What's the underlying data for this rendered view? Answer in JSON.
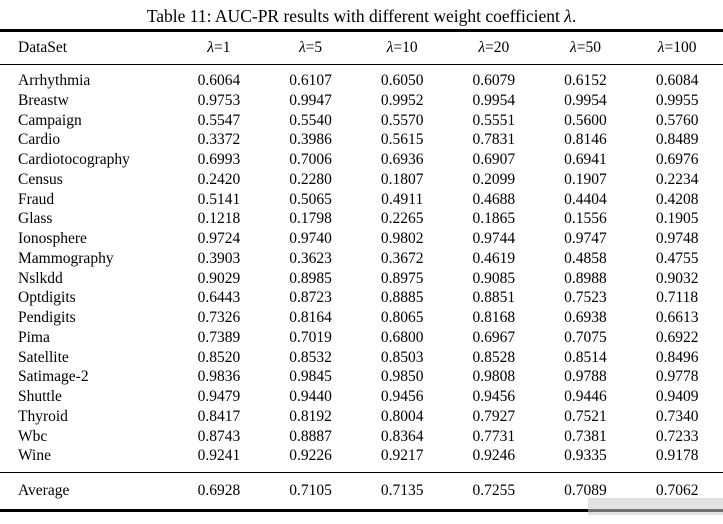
{
  "caption": {
    "prefix": "Table 11: AUC-PR results with different weight coefficient ",
    "lambda": "λ",
    "suffix": "."
  },
  "table": {
    "dataset_header": "DataSet",
    "lambda_headers": [
      {
        "symbol": "λ",
        "eq": "=1"
      },
      {
        "symbol": "λ",
        "eq": "=5"
      },
      {
        "symbol": "λ",
        "eq": "=10"
      },
      {
        "symbol": "λ",
        "eq": "=20"
      },
      {
        "symbol": "λ",
        "eq": "=50"
      },
      {
        "symbol": "λ",
        "eq": "=100"
      }
    ],
    "rows": [
      {
        "dataset": "Arrhythmia",
        "values": [
          "0.6064",
          "0.6107",
          "0.6050",
          "0.6079",
          "0.6152",
          "0.6084"
        ]
      },
      {
        "dataset": "Breastw",
        "values": [
          "0.9753",
          "0.9947",
          "0.9952",
          "0.9954",
          "0.9954",
          "0.9955"
        ]
      },
      {
        "dataset": "Campaign",
        "values": [
          "0.5547",
          "0.5540",
          "0.5570",
          "0.5551",
          "0.5600",
          "0.5760"
        ]
      },
      {
        "dataset": "Cardio",
        "values": [
          "0.3372",
          "0.3986",
          "0.5615",
          "0.7831",
          "0.8146",
          "0.8489"
        ]
      },
      {
        "dataset": "Cardiotocography",
        "values": [
          "0.6993",
          "0.7006",
          "0.6936",
          "0.6907",
          "0.6941",
          "0.6976"
        ]
      },
      {
        "dataset": "Census",
        "values": [
          "0.2420",
          "0.2280",
          "0.1807",
          "0.2099",
          "0.1907",
          "0.2234"
        ]
      },
      {
        "dataset": "Fraud",
        "values": [
          "0.5141",
          "0.5065",
          "0.4911",
          "0.4688",
          "0.4404",
          "0.4208"
        ]
      },
      {
        "dataset": "Glass",
        "values": [
          "0.1218",
          "0.1798",
          "0.2265",
          "0.1865",
          "0.1556",
          "0.1905"
        ]
      },
      {
        "dataset": "Ionosphere",
        "values": [
          "0.9724",
          "0.9740",
          "0.9802",
          "0.9744",
          "0.9747",
          "0.9748"
        ]
      },
      {
        "dataset": "Mammography",
        "values": [
          "0.3903",
          "0.3623",
          "0.3672",
          "0.4619",
          "0.4858",
          "0.4755"
        ]
      },
      {
        "dataset": "Nslkdd",
        "values": [
          "0.9029",
          "0.8985",
          "0.8975",
          "0.9085",
          "0.8988",
          "0.9032"
        ]
      },
      {
        "dataset": "Optdigits",
        "values": [
          "0.6443",
          "0.8723",
          "0.8885",
          "0.8851",
          "0.7523",
          "0.7118"
        ]
      },
      {
        "dataset": "Pendigits",
        "values": [
          "0.7326",
          "0.8164",
          "0.8065",
          "0.8168",
          "0.6938",
          "0.6613"
        ]
      },
      {
        "dataset": "Pima",
        "values": [
          "0.7389",
          "0.7019",
          "0.6800",
          "0.6967",
          "0.7075",
          "0.6922"
        ]
      },
      {
        "dataset": "Satellite",
        "values": [
          "0.8520",
          "0.8532",
          "0.8503",
          "0.8528",
          "0.8514",
          "0.8496"
        ]
      },
      {
        "dataset": "Satimage-2",
        "values": [
          "0.9836",
          "0.9845",
          "0.9850",
          "0.9808",
          "0.9788",
          "0.9778"
        ]
      },
      {
        "dataset": "Shuttle",
        "values": [
          "0.9479",
          "0.9440",
          "0.9456",
          "0.9456",
          "0.9446",
          "0.9409"
        ]
      },
      {
        "dataset": "Thyroid",
        "values": [
          "0.8417",
          "0.8192",
          "0.8004",
          "0.7927",
          "0.7521",
          "0.7340"
        ]
      },
      {
        "dataset": "Wbc",
        "values": [
          "0.8743",
          "0.8887",
          "0.8364",
          "0.7731",
          "0.7381",
          "0.7233"
        ]
      },
      {
        "dataset": "Wine",
        "values": [
          "0.9241",
          "0.9226",
          "0.9217",
          "0.9246",
          "0.9335",
          "0.9178"
        ]
      }
    ],
    "average": {
      "label": "Average",
      "values": [
        "0.6928",
        "0.7105",
        "0.7135",
        "0.7255",
        "0.7089",
        "0.7062"
      ]
    }
  },
  "colors": {
    "text": "#000000",
    "background": "#ffffff",
    "rule": "#000000",
    "scan_artifact": "#cbcbcb"
  }
}
